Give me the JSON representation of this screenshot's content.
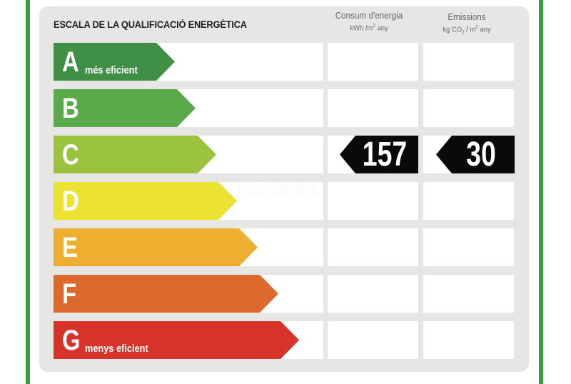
{
  "title": "ESCALA DE LA QUALIFICACIÓ ENERGÈTICA",
  "columns": {
    "consumption": {
      "label": "Consum d'energia",
      "unit_prefix": "kWh /m",
      "unit_exp": "2",
      "unit_suffix": " any"
    },
    "emissions": {
      "label": "Emissions",
      "unit_prefix": "kg CO",
      "unit_sub": "2",
      "unit_mid": " / m",
      "unit_exp": "2",
      "unit_suffix": " any"
    }
  },
  "rating": {
    "consumption": "157",
    "emissions": "30",
    "current_class": "C"
  },
  "classes": [
    {
      "letter": "A",
      "note": "més eficient",
      "color": "#3f8f46"
    },
    {
      "letter": "B",
      "note": "",
      "color": "#5aaa4b"
    },
    {
      "letter": "C",
      "note": "",
      "color": "#9bc33d"
    },
    {
      "letter": "D",
      "note": "",
      "color": "#ece232"
    },
    {
      "letter": "E",
      "note": "",
      "color": "#eeae30"
    },
    {
      "letter": "F",
      "note": "",
      "color": "#dc6a2c"
    },
    {
      "letter": "G",
      "note": "menys eficient",
      "color": "#d8332b"
    }
  ],
  "watermark": "habitaclia"
}
